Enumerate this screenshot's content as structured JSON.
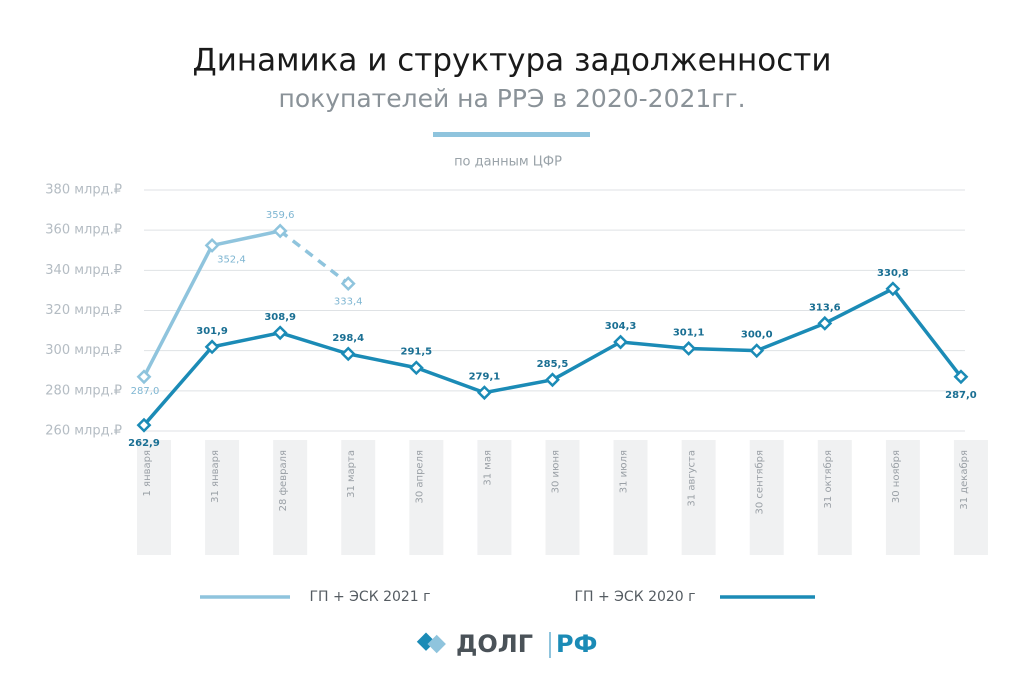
{
  "chart_data": {
    "type": "line",
    "title": "Динамика и структура задолженности",
    "subtitle": "покупателей на РРЭ в 2020-2021гг.",
    "source": "по данным ЦФР",
    "categories": [
      "1 января",
      "31 января",
      "28 февраля",
      "31 марта",
      "30 апреля",
      "31 мая",
      "30 июня",
      "31 июля",
      "31 августа",
      "30 сентября",
      "31 октября",
      "30 ноября",
      "31 декабря"
    ],
    "series": [
      {
        "name": "ГП + ЭСК 2021 г",
        "color": "#8fc4dd",
        "dashed_last_segment": true,
        "values": [
          287.0,
          352.4,
          359.6,
          333.4,
          null,
          null,
          null,
          null,
          null,
          null,
          null,
          null,
          null
        ],
        "value_labels": [
          "287,0",
          "352,4",
          "359,6",
          "333,4",
          null,
          null,
          null,
          null,
          null,
          null,
          null,
          null,
          null
        ]
      },
      {
        "name": "ГП + ЭСК 2020 г",
        "color": "#1b8bb6",
        "values": [
          262.9,
          301.9,
          308.9,
          298.4,
          291.5,
          279.1,
          285.5,
          304.3,
          301.1,
          300.0,
          313.6,
          330.8,
          287.0
        ],
        "value_labels": [
          "262,9",
          "301,9",
          "308,9",
          "298,4",
          "291,5",
          "279,1",
          "285,5",
          "304,3",
          "301,1",
          "300,0",
          "313,6",
          "330,8",
          "287,0"
        ]
      }
    ],
    "ylim": [
      260,
      380
    ],
    "yticks": [
      {
        "value": 260,
        "label": "260 млрд.₽"
      },
      {
        "value": 280,
        "label": "280 млрд.₽"
      },
      {
        "value": 300,
        "label": "300 млрд.₽"
      },
      {
        "value": 320,
        "label": "320 млрд.₽"
      },
      {
        "value": 340,
        "label": "340 млрд.₽"
      },
      {
        "value": 360,
        "label": "360 млрд.₽"
      },
      {
        "value": 380,
        "label": "380 млрд.₽"
      }
    ],
    "grid": true,
    "legend": "bottom"
  },
  "brand": {
    "left": "ДОЛГ",
    "right": "РФ"
  }
}
